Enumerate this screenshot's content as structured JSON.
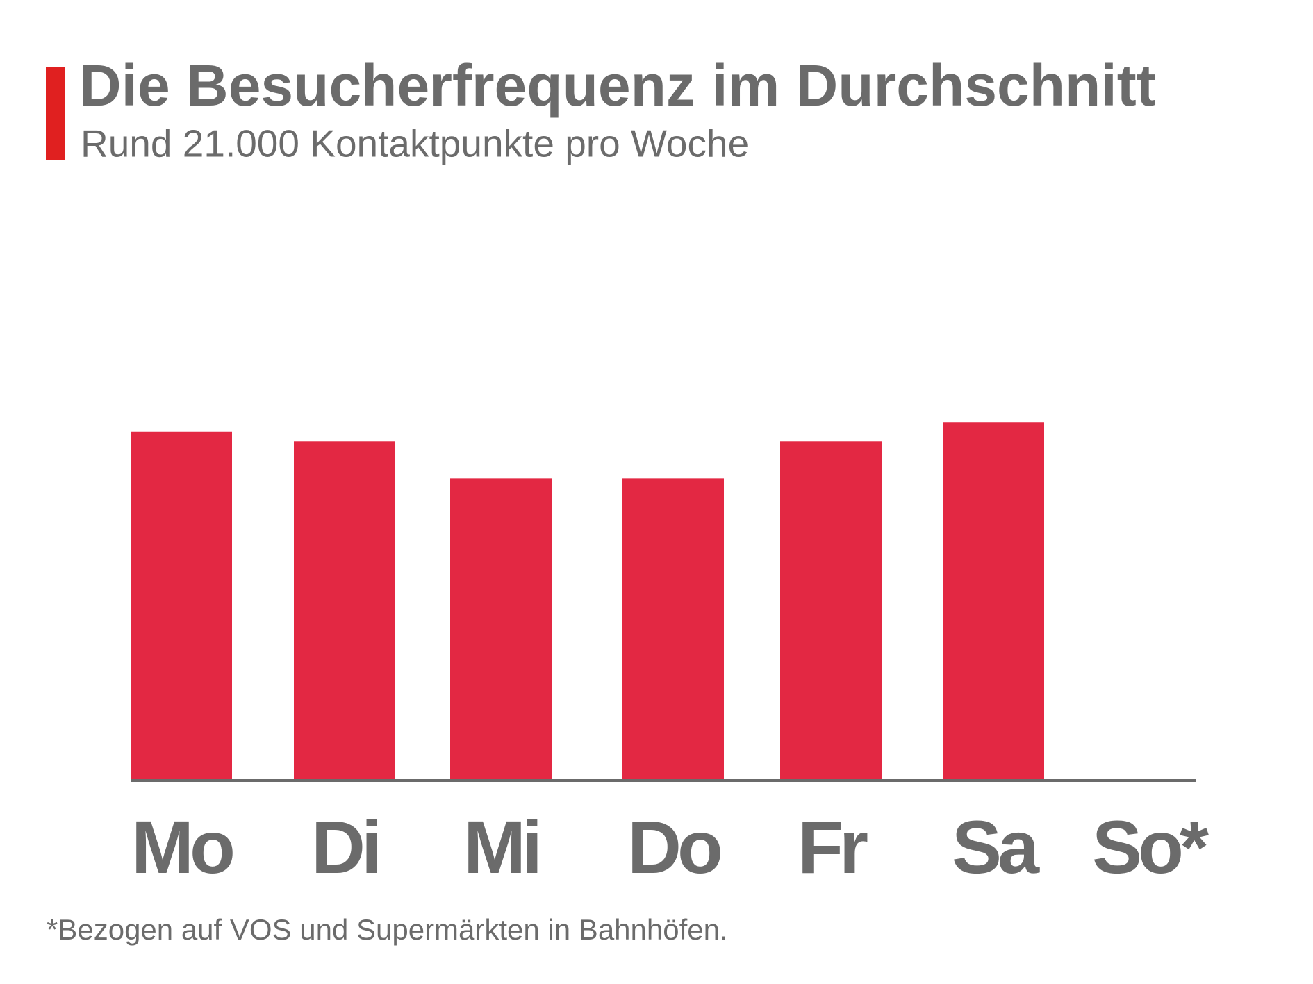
{
  "chart_data": {
    "type": "bar",
    "title": "Die Besucherfrequenz im Durchschnitt",
    "subtitle": "Rund 21.000 Kontaktpunkte pro Woche",
    "categories": [
      "Mo",
      "Di",
      "Mi",
      "Do",
      "Fr",
      "Sa",
      "So*"
    ],
    "values": [
      3700,
      3600,
      3200,
      3200,
      3600,
      3800,
      null
    ],
    "color": "#e32843",
    "ylim": [
      0,
      5000
    ],
    "footnote": "*Bezogen auf VOS und Supermärkten in Bahnhöfen."
  }
}
